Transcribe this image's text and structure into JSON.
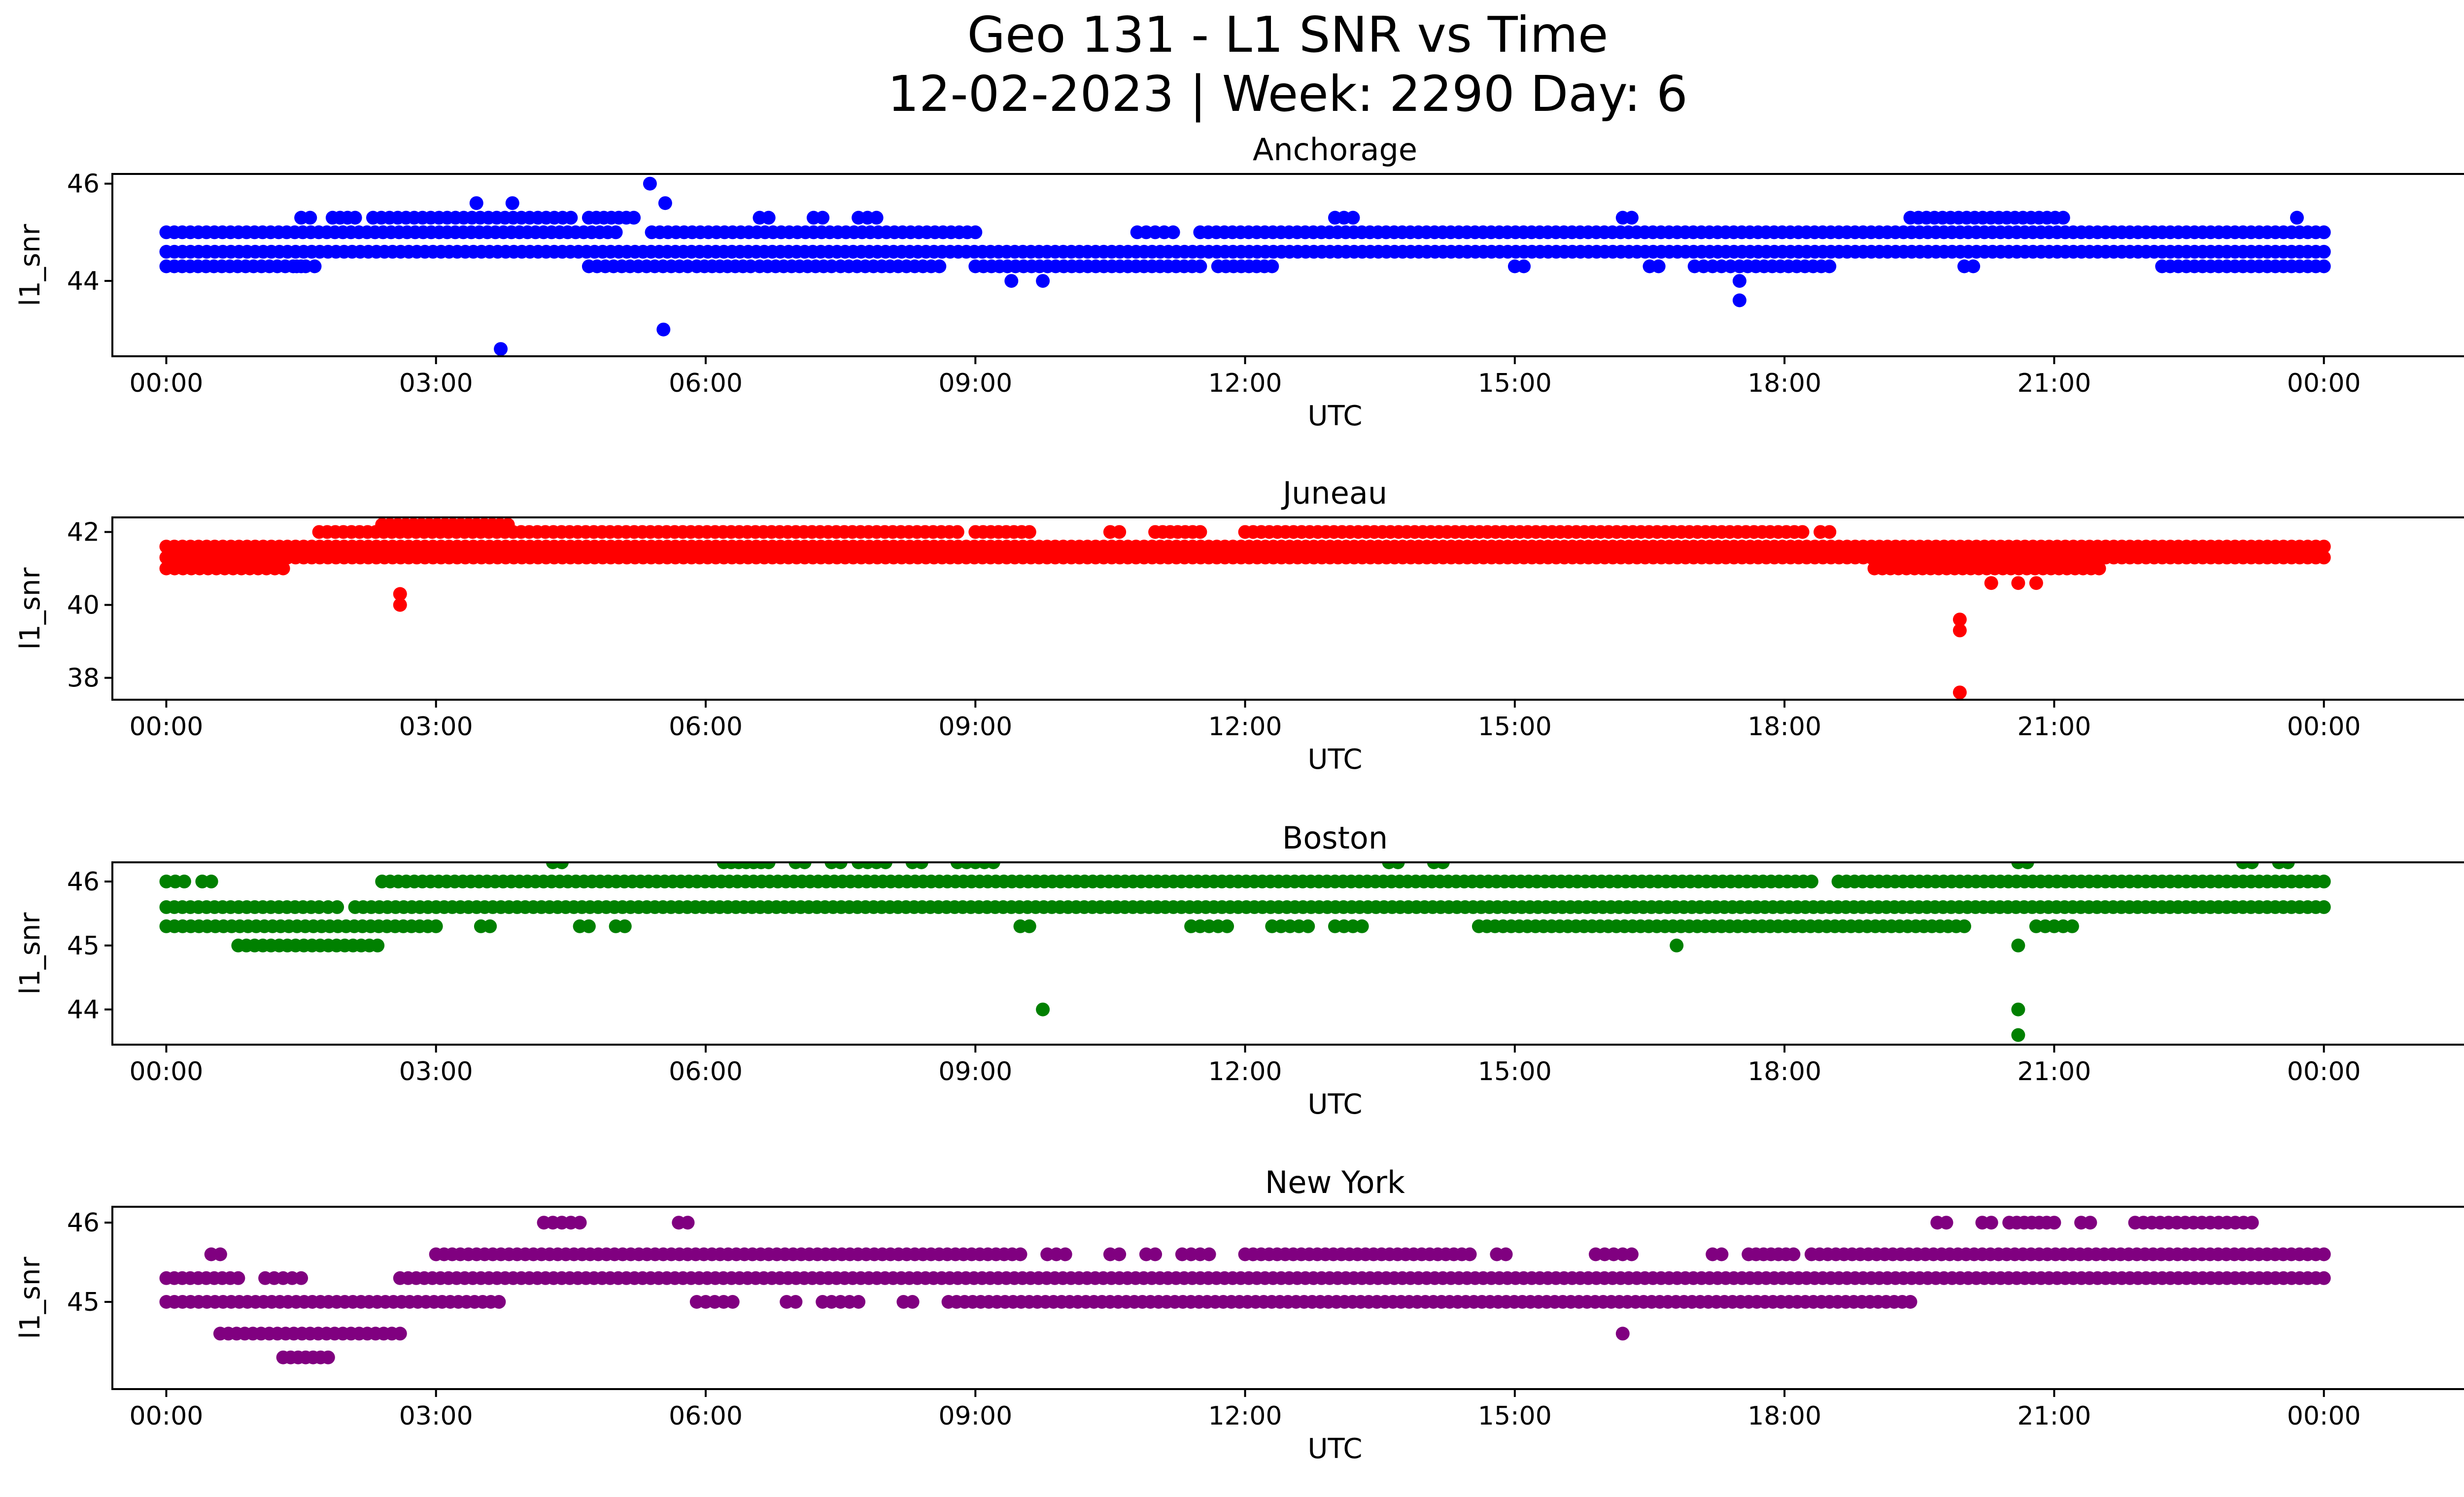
{
  "title_line1": "Geo 131 - L1 SNR vs Time",
  "title_line2": "12-02-2023 | Week: 2290 Day: 6",
  "x_tick_labels": [
    "00:00",
    "03:00",
    "06:00",
    "09:00",
    "12:00",
    "15:00",
    "18:00",
    "21:00",
    "00:00"
  ],
  "chart_data": [
    {
      "type": "scatter",
      "title": "Anchorage",
      "xlabel": "UTC",
      "ylabel": "l1_snr",
      "color": "#0000ff",
      "x_range_hours": [
        -0.6,
        26.6
      ],
      "ylim": [
        42.45,
        46.2
      ],
      "y_ticks": [
        44,
        46
      ],
      "levels": [
        {
          "y": 44.3,
          "segments": [
            [
              0,
              1.5
            ],
            [
              1.45,
              1.65
            ],
            [
              4.7,
              5.8
            ],
            [
              5.9,
              6.5
            ],
            [
              6.6,
              7.4
            ],
            [
              7.5,
              8.6
            ],
            [
              9.0,
              11.5
            ],
            [
              11.7,
              12.3
            ],
            [
              15.0,
              15.1
            ],
            [
              16.5,
              16.6
            ],
            [
              17.0,
              17.4
            ],
            [
              17.5,
              18.5
            ],
            [
              20.0,
              20.1
            ],
            [
              22.2,
              24.0
            ]
          ]
        },
        {
          "y": 44.6,
          "segments": [
            [
              0,
              24.0
            ]
          ]
        },
        {
          "y": 45.0,
          "segments": [
            [
              0,
              5.0
            ],
            [
              5.4,
              9.0
            ],
            [
              10.8,
              11.2
            ],
            [
              11.5,
              24.0
            ]
          ]
        },
        {
          "y": 45.3,
          "segments": [
            [
              1.5,
              1.6
            ],
            [
              1.85,
              2.1
            ],
            [
              2.3,
              4.5
            ],
            [
              4.7,
              5.2
            ],
            [
              6.6,
              6.7
            ],
            [
              7.2,
              7.3
            ],
            [
              7.7,
              7.9
            ],
            [
              13.0,
              13.2
            ],
            [
              16.2,
              16.3
            ],
            [
              19.4,
              21.1
            ]
          ]
        }
      ],
      "outliers": [
        [
          3.72,
          42.6
        ],
        [
          5.53,
          43.0
        ],
        [
          5.38,
          46.0
        ],
        [
          5.55,
          45.6
        ],
        [
          3.45,
          45.6
        ],
        [
          3.85,
          45.6
        ],
        [
          17.5,
          43.6
        ],
        [
          17.5,
          44.0
        ],
        [
          9.4,
          44.0
        ],
        [
          9.75,
          44.0
        ],
        [
          23.7,
          45.3
        ]
      ]
    },
    {
      "type": "scatter",
      "title": "Juneau",
      "xlabel": "UTC",
      "ylabel": "l1_snr",
      "color": "#ff0000",
      "x_range_hours": [
        -0.6,
        26.6
      ],
      "ylim": [
        37.4,
        42.4
      ],
      "y_ticks": [
        38,
        40,
        42
      ],
      "levels": [
        {
          "y": 41.0,
          "segments": [
            [
              0,
              1.3
            ],
            [
              19.0,
              21.5
            ]
          ]
        },
        {
          "y": 41.3,
          "segments": [
            [
              0,
              24.0
            ]
          ]
        },
        {
          "y": 41.6,
          "segments": [
            [
              0,
              24.0
            ]
          ]
        },
        {
          "y": 42.0,
          "segments": [
            [
              1.7,
              8.8
            ],
            [
              9.0,
              9.6
            ],
            [
              10.5,
              10.6
            ],
            [
              11.0,
              11.5
            ],
            [
              12.0,
              18.2
            ],
            [
              18.4,
              18.5
            ]
          ]
        },
        {
          "y": 42.2,
          "segments": [
            [
              2.4,
              3.8
            ]
          ]
        }
      ],
      "outliers": [
        [
          2.6,
          40.0
        ],
        [
          2.6,
          40.3
        ],
        [
          19.95,
          39.6
        ],
        [
          19.95,
          39.3
        ],
        [
          19.95,
          37.6
        ],
        [
          20.3,
          40.6
        ],
        [
          20.6,
          40.6
        ],
        [
          20.8,
          40.6
        ]
      ]
    },
    {
      "type": "scatter",
      "title": "Boston",
      "xlabel": "UTC",
      "ylabel": "l1_snr",
      "color": "#008000",
      "x_range_hours": [
        -0.6,
        26.6
      ],
      "ylim": [
        43.45,
        46.3
      ],
      "y_ticks": [
        44,
        45,
        46
      ],
      "levels": [
        {
          "y": 45.0,
          "segments": [
            [
              0.8,
              2.35
            ]
          ]
        },
        {
          "y": 45.3,
          "segments": [
            [
              0,
              3.0
            ],
            [
              3.5,
              3.6
            ],
            [
              4.6,
              4.7
            ],
            [
              5.0,
              5.1
            ],
            [
              9.5,
              9.6
            ],
            [
              11.4,
              11.8
            ],
            [
              12.3,
              12.7
            ],
            [
              13.0,
              13.3
            ],
            [
              14.6,
              20.0
            ],
            [
              20.8,
              21.2
            ]
          ]
        },
        {
          "y": 45.6,
          "segments": [
            [
              0,
              1.7
            ],
            [
              1.8,
              1.9
            ],
            [
              2.1,
              24.0
            ]
          ]
        },
        {
          "y": 46.0,
          "segments": [
            [
              0,
              0.2
            ],
            [
              0.4,
              0.5
            ],
            [
              2.4,
              18.3
            ],
            [
              18.6,
              24.0
            ]
          ]
        },
        {
          "y": 46.3,
          "segments": [
            [
              4.3,
              4.4
            ],
            [
              6.2,
              6.7
            ],
            [
              7.0,
              7.1
            ],
            [
              7.4,
              7.5
            ],
            [
              7.7,
              8.0
            ],
            [
              8.3,
              8.4
            ],
            [
              8.8,
              9.2
            ],
            [
              13.6,
              13.7
            ],
            [
              14.1,
              14.2
            ],
            [
              20.6,
              20.7
            ],
            [
              23.1,
              23.2
            ],
            [
              23.5,
              23.6
            ]
          ]
        }
      ],
      "outliers": [
        [
          9.75,
          44.0
        ],
        [
          16.8,
          45.0
        ],
        [
          20.6,
          44.0
        ],
        [
          20.6,
          43.6
        ],
        [
          20.6,
          45.0
        ]
      ]
    },
    {
      "type": "scatter",
      "title": "New York",
      "xlabel": "UTC",
      "ylabel": "l1_snr",
      "color": "#800080",
      "x_range_hours": [
        -0.6,
        26.6
      ],
      "ylim": [
        43.9,
        46.2
      ],
      "y_ticks": [
        45,
        46
      ],
      "levels": [
        {
          "y": 44.3,
          "segments": [
            [
              1.3,
              1.8
            ]
          ]
        },
        {
          "y": 44.6,
          "segments": [
            [
              0.6,
              2.6
            ]
          ]
        },
        {
          "y": 45.0,
          "segments": [
            [
              0,
              3.7
            ],
            [
              5.9,
              6.3
            ],
            [
              6.9,
              7.0
            ],
            [
              7.3,
              7.7
            ],
            [
              8.2,
              8.3
            ],
            [
              8.7,
              19.4
            ]
          ]
        },
        {
          "y": 45.3,
          "segments": [
            [
              0,
              0.8
            ],
            [
              1.1,
              1.5
            ],
            [
              2.6,
              24.0
            ]
          ]
        },
        {
          "y": 45.6,
          "segments": [
            [
              0.5,
              0.6
            ],
            [
              3.0,
              9.5
            ],
            [
              9.8,
              10.0
            ],
            [
              10.5,
              10.6
            ],
            [
              10.9,
              11.0
            ],
            [
              11.3,
              11.6
            ],
            [
              12.0,
              14.5
            ],
            [
              14.8,
              14.9
            ],
            [
              15.9,
              16.3
            ],
            [
              17.2,
              17.3
            ],
            [
              17.6,
              18.1
            ],
            [
              18.3,
              24.0
            ]
          ]
        },
        {
          "y": 46.0,
          "segments": [
            [
              4.2,
              4.6
            ],
            [
              5.7,
              5.8
            ],
            [
              19.7,
              19.8
            ],
            [
              20.2,
              20.3
            ],
            [
              20.5,
              21.0
            ],
            [
              21.3,
              21.4
            ],
            [
              21.9,
              23.2
            ]
          ]
        }
      ],
      "outliers": [
        [
          16.2,
          44.6
        ]
      ]
    }
  ]
}
